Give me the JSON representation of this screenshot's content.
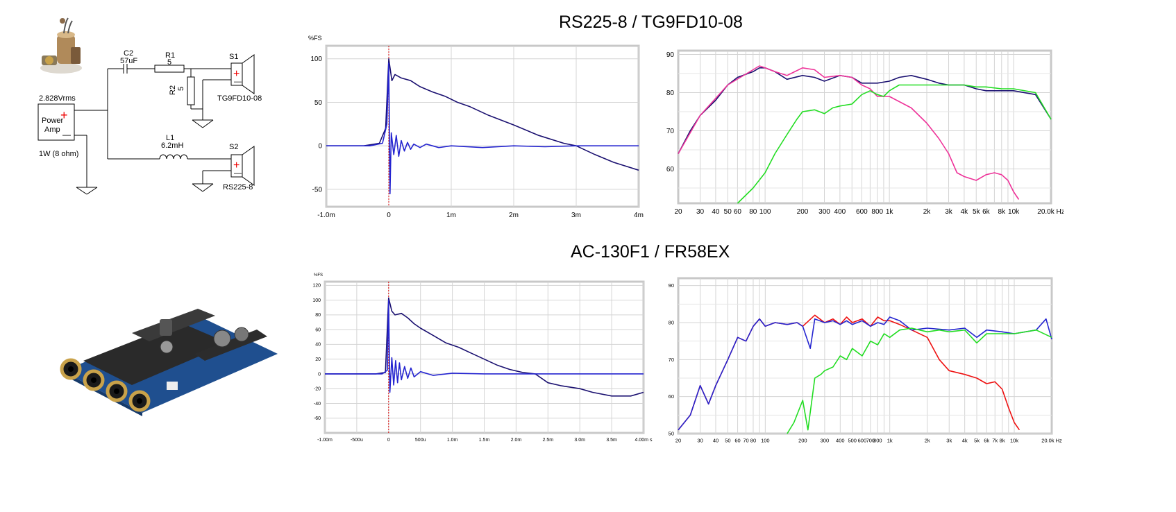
{
  "section_titles": {
    "top": "RS225-8 / TG9FD10-08",
    "bottom": "AC-130F1 / FR58EX"
  },
  "schematic": {
    "source_voltage": "2.828Vrms",
    "amp_label_1": "Power",
    "amp_label_2": "Amp",
    "power_note": "1W (8 ohm)",
    "c2_name": "C2",
    "c2_value": "57uF",
    "r1_name": "R1",
    "r1_value": "5",
    "r2_name": "R2",
    "r2_value": "5",
    "l1_name": "L1",
    "l1_value": "6.2mH",
    "s1_name": "S1",
    "s1_model": "TG9FD10-08",
    "s2_name": "S2",
    "s2_model": "RS225-8",
    "plus": "+",
    "minus": "—"
  },
  "photos": {
    "top": "crossover-components-photo",
    "bottom": "dsp-board-photo"
  },
  "colors": {
    "navy": "#1a1070",
    "blue": "#2424d0",
    "pink": "#ee3399",
    "green": "#22dd22",
    "red": "#ee1111",
    "marker": "#dd0000"
  },
  "chart_data": [
    {
      "id": "impulse_top",
      "type": "line",
      "ylabel": "%FS",
      "xlim": [
        -1.0,
        4.0
      ],
      "ylim": [
        -70,
        115
      ],
      "xticks": [
        -1.0,
        0,
        1,
        2,
        3,
        4
      ],
      "xtick_labels": [
        "-1.0m",
        "0",
        "1m",
        "2m",
        "3m",
        "4m"
      ],
      "yticks": [
        100,
        50,
        0,
        -50
      ],
      "ytick_labels": [
        "100",
        "50",
        "0",
        "-50"
      ],
      "grid": true,
      "marker_x": 0,
      "series": [
        {
          "color": "navy",
          "x": [
            -1.0,
            -0.4,
            -0.15,
            -0.05,
            0,
            0.05,
            0.1,
            0.2,
            0.35,
            0.5,
            0.7,
            0.9,
            1.1,
            1.3,
            1.6,
            2.0,
            2.4,
            2.8,
            3.0,
            3.3,
            3.6,
            4.0
          ],
          "y": [
            0,
            0,
            3,
            20,
            100,
            75,
            82,
            78,
            75,
            68,
            62,
            57,
            50,
            45,
            35,
            24,
            12,
            3,
            0,
            -10,
            -19,
            -28
          ]
        },
        {
          "color": "blue",
          "x": [
            -1.0,
            -0.3,
            -0.1,
            -0.03,
            0,
            0.02,
            0.04,
            0.08,
            0.12,
            0.16,
            0.2,
            0.25,
            0.3,
            0.35,
            0.4,
            0.5,
            0.6,
            0.8,
            1.0,
            1.5,
            2.0,
            2.5,
            3.0,
            3.5,
            4.0
          ],
          "y": [
            0,
            0,
            3,
            25,
            95,
            -55,
            15,
            -10,
            12,
            -12,
            6,
            -6,
            4,
            -4,
            2,
            -2,
            2,
            -2,
            0,
            -2,
            0,
            -1,
            0,
            0,
            0
          ]
        }
      ]
    },
    {
      "id": "freq_top",
      "type": "line",
      "xscale": "log",
      "xlim": [
        20,
        20000
      ],
      "ylim": [
        51,
        91
      ],
      "xticks": [
        20,
        30,
        40,
        50,
        60,
        80,
        100,
        200,
        300,
        400,
        600,
        800,
        1000,
        2000,
        3000,
        4000,
        5000,
        6000,
        8000,
        10000,
        20000
      ],
      "xtick_labels": [
        "20",
        "30",
        "40",
        "50",
        "60",
        "80",
        "100",
        "200",
        "300",
        "400",
        "600",
        "800",
        "1k",
        "2k",
        "3k",
        "4k",
        "5k",
        "6k",
        "8k",
        "10k",
        "20.0k Hz"
      ],
      "yticks": [
        90,
        80,
        70,
        60
      ],
      "ytick_labels": [
        "90",
        "80",
        "70",
        "60"
      ],
      "grid": true,
      "series": [
        {
          "color": "navy",
          "x": [
            20,
            25,
            30,
            40,
            50,
            60,
            80,
            90,
            100,
            120,
            150,
            200,
            250,
            300,
            400,
            500,
            600,
            800,
            1000,
            1200,
            1500,
            2000,
            2500,
            3000,
            4000,
            5000,
            6000,
            8000,
            10000,
            15000,
            20000
          ],
          "y": [
            64,
            70,
            74,
            78,
            82,
            84,
            85.5,
            86.5,
            86.5,
            85.5,
            83.5,
            84.5,
            84,
            83,
            84.5,
            84,
            82.5,
            82.5,
            83,
            84,
            84.5,
            83.5,
            82.5,
            82,
            82,
            81,
            80.5,
            80.5,
            80.5,
            79.5,
            73
          ]
        },
        {
          "color": "pink",
          "x": [
            20,
            30,
            50,
            80,
            90,
            100,
            120,
            150,
            200,
            250,
            300,
            400,
            500,
            600,
            700,
            800,
            1000,
            1500,
            2000,
            2500,
            3000,
            3500,
            4000,
            5000,
            6000,
            7000,
            8000,
            9000,
            10000,
            11000
          ],
          "y": [
            64,
            74,
            82,
            86,
            87,
            86.5,
            85.5,
            84.5,
            86.5,
            86,
            84,
            84.5,
            84,
            82,
            81,
            79,
            79,
            76,
            72,
            68,
            64,
            59,
            58,
            57,
            58.5,
            59,
            58.5,
            57,
            54,
            52
          ]
        },
        {
          "color": "green",
          "x": [
            60,
            80,
            100,
            120,
            150,
            180,
            200,
            250,
            300,
            350,
            400,
            500,
            600,
            700,
            800,
            900,
            1000,
            1200,
            1500,
            2000,
            3000,
            4000,
            5000,
            6000,
            8000,
            10000,
            15000,
            20000
          ],
          "y": [
            51,
            55,
            59,
            64,
            69,
            73,
            75,
            75.5,
            74.5,
            76,
            76.5,
            77,
            79.5,
            80.5,
            79.5,
            79,
            80.5,
            82,
            82,
            82,
            82,
            82,
            81.5,
            81.5,
            81,
            81,
            80,
            73
          ]
        }
      ]
    },
    {
      "id": "impulse_bottom",
      "type": "line",
      "ylabel": "%FS",
      "xlim": [
        -1.0,
        4.0
      ],
      "ylim": [
        -80,
        125
      ],
      "xticks": [
        -1.0,
        -0.5,
        0,
        0.5,
        1.0,
        1.5,
        2.0,
        2.5,
        3.0,
        3.5,
        4.0
      ],
      "xtick_labels": [
        "-1.00m",
        "-500u",
        "0",
        "500u",
        "1.0m",
        "1.5m",
        "2.0m",
        "2.5m",
        "3.0m",
        "3.5m",
        "4.00m s"
      ],
      "yticks": [
        120,
        100,
        80,
        60,
        40,
        20,
        0,
        -20,
        -40,
        -60
      ],
      "ytick_labels": [
        "120",
        "100",
        "80",
        "60",
        "40",
        "20",
        "0",
        "-20",
        "-40",
        "-60"
      ],
      "grid": true,
      "marker_x": 0,
      "series": [
        {
          "color": "navy",
          "x": [
            -1.0,
            -0.2,
            -0.05,
            0,
            0.05,
            0.1,
            0.2,
            0.3,
            0.4,
            0.5,
            0.7,
            0.9,
            1.1,
            1.3,
            1.5,
            1.7,
            1.9,
            2.1,
            2.3,
            2.5,
            2.7,
            3.0,
            3.2,
            3.5,
            3.8,
            4.0
          ],
          "y": [
            0,
            0,
            2,
            103,
            85,
            80,
            82,
            76,
            68,
            62,
            52,
            42,
            36,
            28,
            20,
            12,
            6,
            2,
            0,
            -12,
            -16,
            -20,
            -25,
            -30,
            -30,
            -25
          ]
        },
        {
          "color": "blue",
          "x": [
            -1.0,
            -0.1,
            -0.02,
            0,
            0.02,
            0.05,
            0.08,
            0.11,
            0.14,
            0.17,
            0.2,
            0.25,
            0.3,
            0.35,
            0.4,
            0.5,
            0.7,
            1.0,
            1.5,
            2.0,
            2.5,
            3.0,
            3.5,
            4.0
          ],
          "y": [
            0,
            0,
            5,
            100,
            -25,
            22,
            -15,
            18,
            -12,
            15,
            -8,
            10,
            -6,
            8,
            -4,
            3,
            -2,
            1,
            0,
            0,
            0,
            0,
            0,
            0
          ]
        }
      ]
    },
    {
      "id": "freq_bottom",
      "type": "line",
      "xscale": "log",
      "xlim": [
        20,
        20000
      ],
      "ylim": [
        50,
        92
      ],
      "xticks": [
        20,
        30,
        40,
        50,
        60,
        70,
        80,
        100,
        200,
        300,
        400,
        500,
        600,
        700,
        800,
        1000,
        2000,
        3000,
        4000,
        5000,
        6000,
        7000,
        8000,
        10000,
        20000
      ],
      "xtick_labels": [
        "20",
        "30",
        "40",
        "50",
        "60",
        "70",
        "80",
        "100",
        "200",
        "300",
        "400",
        "500",
        "600",
        "700",
        "800",
        "1k",
        "2k",
        "3k",
        "4k",
        "5k",
        "6k",
        "7k",
        "8k",
        "10k",
        "20.0k Hz"
      ],
      "yticks": [
        90,
        80,
        70,
        60,
        50
      ],
      "ytick_labels": [
        "90",
        "80",
        "70",
        "60",
        "50"
      ],
      "grid": true,
      "series": [
        {
          "color": "red",
          "x": [
            20,
            25,
            30,
            35,
            40,
            50,
            60,
            70,
            80,
            90,
            100,
            120,
            150,
            180,
            200,
            250,
            300,
            350,
            400,
            450,
            500,
            600,
            700,
            800,
            900,
            1000,
            1200,
            1500,
            2000,
            2500,
            3000,
            4000,
            5000,
            6000,
            7000,
            8000,
            9000,
            10000,
            11000
          ],
          "y": [
            51,
            55,
            63,
            58,
            63,
            70,
            76,
            75,
            79,
            81,
            79,
            80,
            79.5,
            80,
            79,
            82,
            80,
            81,
            79.5,
            81.5,
            80,
            81,
            79,
            81.5,
            80.5,
            80.5,
            79.5,
            78,
            76,
            70,
            67,
            66,
            65,
            63.5,
            64,
            62,
            57,
            53,
            51
          ]
        },
        {
          "color": "blue",
          "x": [
            20,
            25,
            30,
            35,
            40,
            50,
            60,
            70,
            80,
            90,
            100,
            120,
            150,
            180,
            200,
            230,
            250,
            300,
            350,
            400,
            450,
            500,
            600,
            700,
            800,
            900,
            1000,
            1200,
            1500,
            2000,
            3000,
            4000,
            5000,
            6000,
            8000,
            10000,
            15000,
            18000,
            20000
          ],
          "y": [
            51,
            55,
            63,
            58,
            63,
            70,
            76,
            75,
            79,
            81,
            79,
            80,
            79.5,
            80,
            79,
            73,
            81,
            80,
            80.5,
            79.5,
            80.5,
            79.5,
            80.5,
            79,
            80,
            79.5,
            81.5,
            80.5,
            78,
            78.5,
            78,
            78.5,
            76,
            78,
            77.5,
            77,
            78,
            81,
            75.5
          ]
        },
        {
          "color": "green",
          "x": [
            150,
            170,
            200,
            220,
            250,
            280,
            300,
            350,
            400,
            450,
            500,
            600,
            700,
            800,
            900,
            1000,
            1200,
            1500,
            2000,
            2500,
            3000,
            4000,
            5000,
            6000,
            8000,
            10000,
            15000,
            20000
          ],
          "y": [
            50,
            53,
            59,
            51,
            65,
            66,
            67,
            68,
            71,
            70,
            73,
            71,
            75,
            74,
            77,
            76,
            78,
            78.5,
            77.5,
            78,
            77.5,
            78,
            74.5,
            77,
            77,
            77,
            78,
            76
          ]
        }
      ]
    }
  ]
}
